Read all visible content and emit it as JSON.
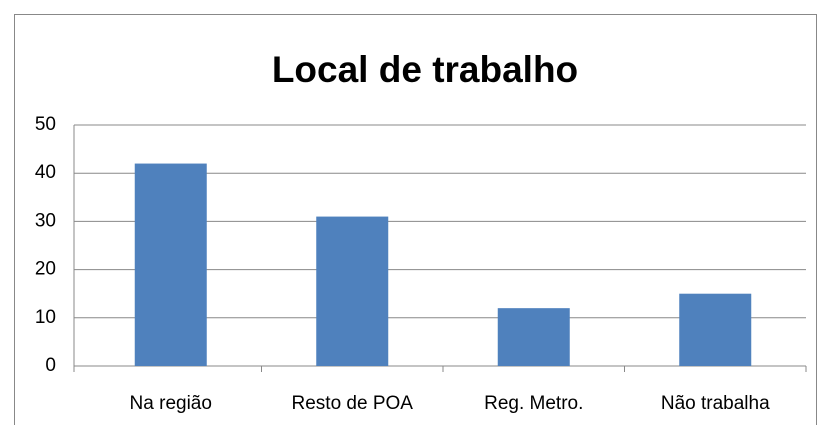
{
  "chart_data": {
    "type": "bar",
    "title": "Local de trabalho",
    "categories": [
      "Na região",
      "Resto de POA",
      "Reg. Metro.",
      "Não trabalha"
    ],
    "values": [
      42,
      31,
      12,
      15
    ],
    "color": "#4f81bd",
    "ylim": [
      0,
      50
    ],
    "yticks": [
      0,
      10,
      20,
      30,
      40,
      50
    ],
    "grid": true
  }
}
